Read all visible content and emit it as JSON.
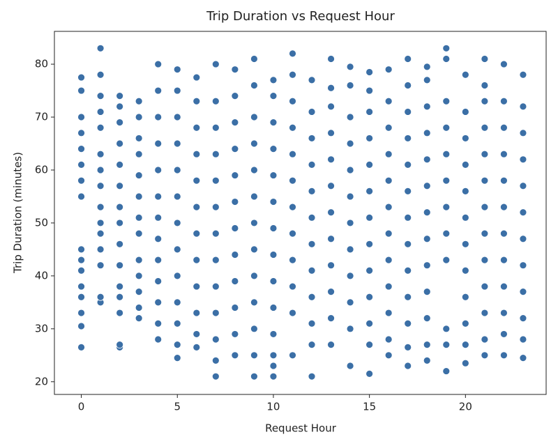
{
  "chart_data": {
    "type": "scatter",
    "title": "Trip Duration vs Request Hour",
    "x_label": "Request Hour",
    "y_label": "Trip Duration (minutes)",
    "color": "#3b6fa6",
    "grid": false,
    "xlim": [
      -1.4,
      24.2
    ],
    "ylim": [
      17.6,
      86.2
    ],
    "xticks": [
      0,
      5,
      10,
      15,
      20
    ],
    "yticks": [
      20,
      30,
      40,
      50,
      60,
      70,
      80
    ],
    "x": [
      0,
      0,
      0,
      0,
      0,
      0,
      0,
      0,
      0,
      0,
      0,
      0,
      0,
      0,
      0,
      0,
      1,
      1,
      1,
      1,
      1,
      1,
      1,
      1,
      1,
      1,
      1,
      1,
      1,
      1,
      1,
      2,
      2,
      2,
      2,
      2,
      2,
      2,
      2,
      2,
      2,
      2,
      2,
      2,
      2,
      2,
      3,
      3,
      3,
      3,
      3,
      3,
      3,
      3,
      3,
      3,
      3,
      3,
      3,
      4,
      4,
      4,
      4,
      4,
      4,
      4,
      4,
      4,
      4,
      4,
      4,
      4,
      5,
      5,
      5,
      5,
      5,
      5,
      5,
      5,
      5,
      5,
      5,
      5,
      5,
      6,
      6,
      6,
      6,
      6,
      6,
      6,
      6,
      6,
      6,
      6,
      6,
      7,
      7,
      7,
      7,
      7,
      7,
      7,
      7,
      7,
      7,
      7,
      7,
      7,
      8,
      8,
      8,
      8,
      8,
      8,
      8,
      8,
      8,
      8,
      8,
      8,
      9,
      9,
      9,
      9,
      9,
      9,
      9,
      9,
      9,
      9,
      9,
      9,
      9,
      10,
      10,
      10,
      10,
      10,
      10,
      10,
      10,
      10,
      10,
      10,
      10,
      10,
      10,
      11,
      11,
      11,
      11,
      11,
      11,
      11,
      11,
      11,
      11,
      11,
      11,
      12,
      12,
      12,
      12,
      12,
      12,
      12,
      12,
      12,
      12,
      12,
      12,
      13,
      13,
      13,
      13,
      13,
      13,
      13,
      13,
      13,
      13,
      13,
      13,
      14,
      14,
      14,
      14,
      14,
      14,
      14,
      14,
      14,
      14,
      14,
      14,
      15,
      15,
      15,
      15,
      15,
      15,
      15,
      15,
      15,
      15,
      15,
      15,
      15,
      16,
      16,
      16,
      16,
      16,
      16,
      16,
      16,
      16,
      16,
      16,
      16,
      17,
      17,
      17,
      17,
      17,
      17,
      17,
      17,
      17,
      17,
      17,
      17,
      17,
      18,
      18,
      18,
      18,
      18,
      18,
      18,
      18,
      18,
      18,
      18,
      18,
      18,
      19,
      19,
      19,
      19,
      19,
      19,
      19,
      19,
      19,
      19,
      19,
      19,
      20,
      20,
      20,
      20,
      20,
      20,
      20,
      20,
      20,
      20,
      20,
      20,
      21,
      21,
      21,
      21,
      21,
      21,
      21,
      21,
      21,
      21,
      21,
      21,
      21,
      22,
      22,
      22,
      22,
      22,
      22,
      22,
      22,
      22,
      22,
      22,
      22,
      23,
      23,
      23,
      23,
      23,
      23,
      23,
      23,
      23,
      23,
      23,
      23
    ],
    "y": [
      26.5,
      30.5,
      33,
      36,
      38,
      41,
      43,
      45,
      55,
      58,
      61,
      64,
      67,
      70,
      75,
      77.5,
      35,
      36,
      42,
      45,
      48,
      50,
      53,
      57,
      60,
      63,
      68,
      71,
      74,
      78,
      83,
      26.5,
      27,
      33,
      36,
      38,
      42,
      46,
      50,
      53,
      57,
      61,
      65,
      69,
      72,
      74,
      32,
      34,
      37,
      40,
      43,
      48,
      51,
      55,
      59,
      63,
      66,
      70,
      73,
      28,
      31,
      35,
      39,
      43,
      47,
      51,
      55,
      60,
      65,
      70,
      75,
      80,
      24.5,
      27,
      31,
      35,
      40,
      45,
      50,
      55,
      60,
      65,
      70,
      75,
      79,
      26.5,
      29,
      33,
      38,
      43,
      48,
      53,
      58,
      63,
      68,
      73,
      77.5,
      21,
      24,
      28,
      33,
      38,
      43,
      48,
      53,
      58,
      63,
      68,
      73,
      80,
      25,
      29,
      34,
      39,
      44,
      49,
      54,
      59,
      64,
      69,
      74,
      79,
      21,
      25,
      30,
      35,
      40,
      45,
      50,
      55,
      60,
      65,
      70,
      76,
      81,
      21,
      23,
      25,
      29,
      34,
      39,
      44,
      49,
      54,
      59,
      64,
      69,
      74,
      77,
      25,
      33,
      38,
      43,
      48,
      53,
      58,
      63,
      68,
      73,
      78,
      82,
      21,
      27,
      31,
      36,
      41,
      46,
      51,
      56,
      61,
      66,
      71,
      77,
      27,
      32,
      37,
      42,
      47,
      52,
      57,
      62,
      67,
      72,
      75.5,
      81,
      23,
      30,
      35,
      40,
      45,
      50,
      55,
      60,
      65,
      70,
      76,
      79.5,
      21.5,
      27,
      31,
      36,
      41,
      46,
      51,
      56,
      61,
      66,
      71,
      75,
      78.5,
      25,
      28,
      33,
      38,
      43,
      48,
      53,
      58,
      63,
      68,
      73,
      79,
      23,
      26.5,
      31,
      36,
      41,
      46,
      51,
      56,
      61,
      66,
      71,
      76,
      81,
      24,
      27,
      32,
      37,
      42,
      47,
      52,
      57,
      62,
      67,
      72,
      77,
      79.5,
      22,
      27,
      30,
      43,
      48,
      53,
      58,
      63,
      68,
      73,
      81,
      83,
      23.5,
      27,
      31,
      36,
      41,
      46,
      51,
      56,
      61,
      66,
      71,
      78,
      25,
      28,
      33,
      38,
      43,
      48,
      53,
      58,
      63,
      68,
      73,
      76,
      81,
      25,
      29,
      33,
      38,
      43,
      48,
      53,
      58,
      63,
      68,
      73,
      80,
      24.5,
      28,
      32,
      37,
      42,
      47,
      52,
      57,
      62,
      67,
      72,
      78
    ]
  }
}
